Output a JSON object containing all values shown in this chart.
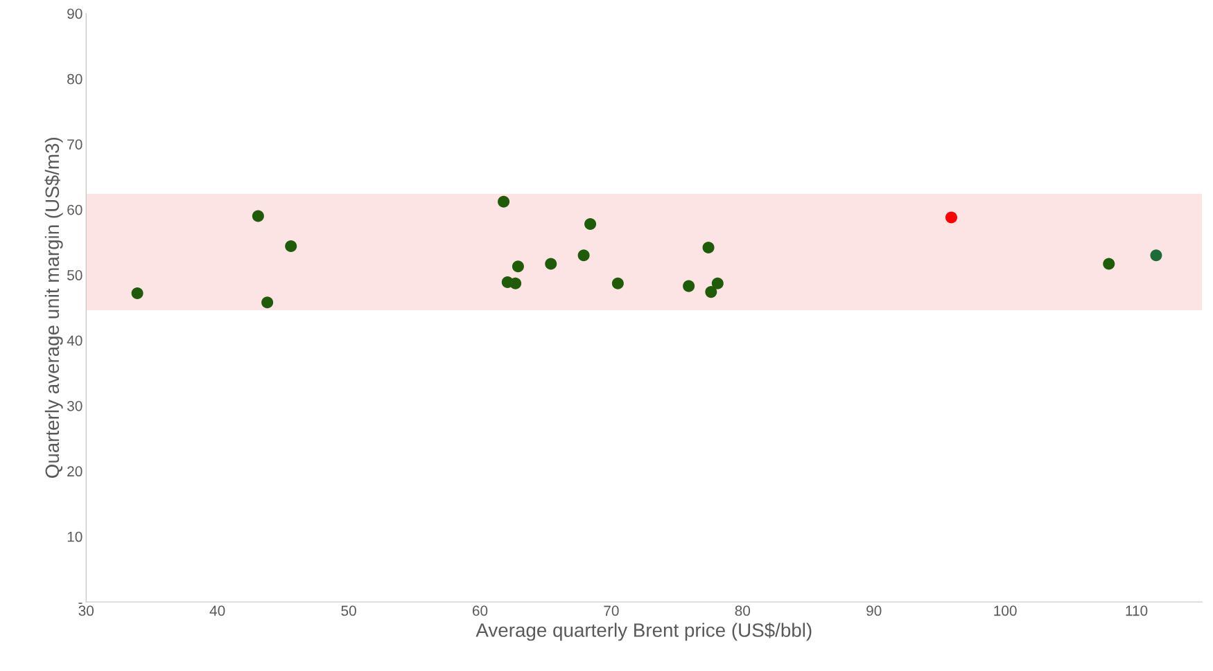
{
  "chart_data": {
    "type": "scatter",
    "xlabel": "Average quarterly Brent price (US$/bbl)",
    "ylabel": "Quarterly average unit margin (US$/m3)",
    "x": [
      33.9,
      43.1,
      43.8,
      45.6,
      61.8,
      62.1,
      62.7,
      62.9,
      65.4,
      67.9,
      68.4,
      70.5,
      75.9,
      77.4,
      77.6,
      78.1,
      95.9,
      107.9,
      111.5
    ],
    "values": [
      47.2,
      59.0,
      45.8,
      54.4,
      61.2,
      48.9,
      48.7,
      51.3,
      51.7,
      53.0,
      57.8,
      48.7,
      48.3,
      54.2,
      47.4,
      48.7,
      58.8,
      51.7,
      53.0
    ],
    "colors": [
      "#1e5c0a",
      "#1e5c0a",
      "#1e5c0a",
      "#1e5c0a",
      "#1e5c0a",
      "#1e5c0a",
      "#1e5c0a",
      "#1e5c0a",
      "#1e5c0a",
      "#1e5c0a",
      "#1e5c0a",
      "#1e5c0a",
      "#1e5c0a",
      "#1e5c0a",
      "#1e5c0a",
      "#1e5c0a",
      "#ff0000",
      "#1e5c0a",
      "#1e6b3a"
    ],
    "marker": "circle",
    "xlim": [
      30,
      115
    ],
    "ylim": [
      0,
      90
    ],
    "xticks": [
      30,
      40,
      50,
      60,
      70,
      80,
      90,
      100,
      110
    ],
    "yticks": [
      {
        "value": 0,
        "label": "-"
      },
      10,
      20,
      30,
      40,
      50,
      60,
      70,
      80,
      90
    ],
    "bands": [
      {
        "axis": "y",
        "from": 44.6,
        "to": 62.4,
        "color": "#fce4e4"
      }
    ],
    "grid": false,
    "legend": false
  }
}
